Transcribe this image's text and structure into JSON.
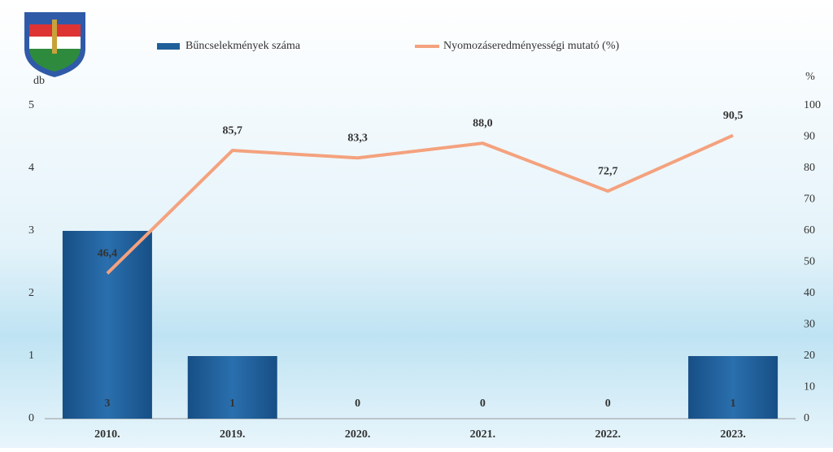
{
  "chart_data": {
    "type": "bar",
    "categories": [
      "2010.",
      "2019.",
      "2020.",
      "2021.",
      "2022.",
      "2023."
    ],
    "series": [
      {
        "name": "Bűncselekmények száma",
        "color": "#1f5f99",
        "values": [
          3,
          1,
          0,
          0,
          0,
          1
        ]
      },
      {
        "name": "Nyomozáseredményességi mutató (%)",
        "color": "#f4a27e",
        "type": "line",
        "axis": "y2",
        "values": [
          46.4,
          85.7,
          83.3,
          88.0,
          72.7,
          90.5
        ],
        "value_labels": [
          "46,4",
          "85,7",
          "83,3",
          "88,0",
          "72,7",
          "90,5"
        ]
      }
    ],
    "ylabel": "db",
    "y2label": "%",
    "ylim": [
      0,
      5
    ],
    "yticks": [
      0,
      1,
      2,
      3,
      4,
      5
    ],
    "y2lim": [
      0,
      100
    ],
    "y2ticks": [
      0,
      10,
      20,
      30,
      40,
      50,
      60,
      70,
      80,
      90,
      100
    ]
  }
}
